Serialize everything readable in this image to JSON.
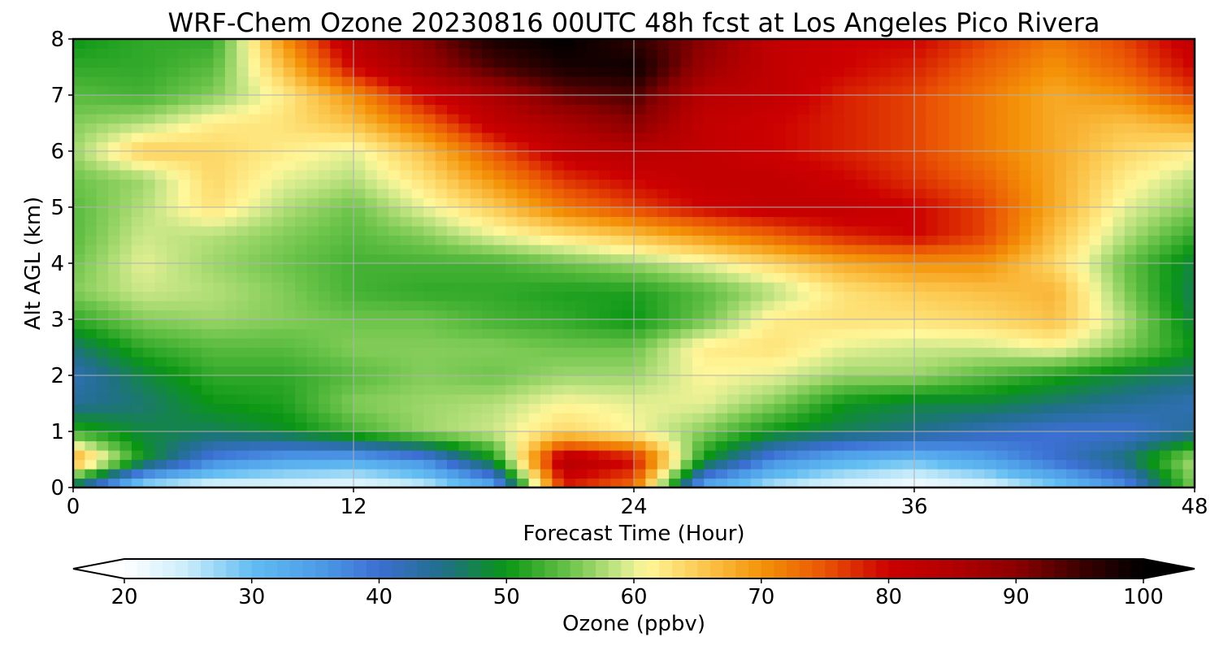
{
  "chart_data": {
    "type": "heatmap",
    "title": "WRF-Chem Ozone  20230816 00UTC 48h fcst at Los Angeles Pico Rivera",
    "xlabel": "Forecast Time (Hour)",
    "ylabel": "Alt AGL (km)",
    "xlim": [
      0,
      48
    ],
    "ylim": [
      0,
      8
    ],
    "x_ticks": [
      "0",
      "12",
      "24",
      "36",
      "48"
    ],
    "y_ticks": [
      "0",
      "1",
      "2",
      "3",
      "4",
      "5",
      "6",
      "7",
      "8"
    ],
    "grid": true,
    "x": [
      0,
      3,
      6,
      9,
      12,
      15,
      18,
      21,
      24,
      27,
      30,
      33,
      36,
      39,
      42,
      45,
      48
    ],
    "y": [
      0,
      0.5,
      1,
      1.5,
      2,
      2.5,
      3,
      3.5,
      4,
      4.5,
      5,
      5.5,
      6,
      6.5,
      7,
      7.5,
      8
    ],
    "z": [
      [
        45,
        25,
        22,
        22,
        21,
        24,
        32,
        78,
        73,
        32,
        25,
        22,
        20,
        22,
        28,
        36,
        56
      ],
      [
        70,
        50,
        38,
        34,
        33,
        37,
        50,
        85,
        80,
        50,
        37,
        32,
        30,
        34,
        40,
        46,
        58
      ],
      [
        52,
        48,
        47,
        49,
        53,
        57,
        59,
        64,
        61,
        56,
        50,
        47,
        45,
        42,
        40,
        40,
        44
      ],
      [
        44,
        46,
        50,
        51,
        56,
        57,
        58,
        61,
        60,
        60,
        56,
        50,
        48,
        48,
        46,
        44,
        42
      ],
      [
        42,
        48,
        52,
        52,
        54,
        56,
        55,
        57,
        57,
        61,
        60,
        57,
        57,
        54,
        51,
        48,
        46
      ],
      [
        46,
        52,
        54,
        54,
        56,
        56,
        56,
        55,
        55,
        62,
        63,
        60,
        59,
        59,
        61,
        56,
        50
      ],
      [
        52,
        56,
        57,
        56,
        55,
        55,
        53,
        52,
        50,
        55,
        62,
        63,
        63,
        64,
        66,
        58,
        48
      ],
      [
        56,
        59,
        58,
        56,
        53,
        52,
        52,
        51,
        51,
        54,
        58,
        63,
        65,
        66,
        67,
        56,
        47
      ],
      [
        55,
        60,
        57,
        55,
        53,
        53,
        53,
        55,
        57,
        60,
        64,
        68,
        70,
        70,
        64,
        55,
        48
      ],
      [
        54,
        59,
        58,
        56,
        54,
        56,
        60,
        63,
        66,
        70,
        74,
        78,
        80,
        76,
        66,
        58,
        52
      ],
      [
        54,
        58,
        63,
        58,
        55,
        60,
        65,
        72,
        76,
        80,
        82,
        82,
        80,
        76,
        68,
        60,
        56
      ],
      [
        55,
        57,
        64,
        60,
        58,
        63,
        70,
        77,
        80,
        82,
        82,
        80,
        77,
        74,
        68,
        62,
        58
      ],
      [
        57,
        65,
        64,
        62,
        60,
        66,
        75,
        82,
        84,
        82,
        80,
        78,
        76,
        72,
        68,
        64,
        62
      ],
      [
        56,
        58,
        62,
        63,
        66,
        73,
        82,
        86,
        90,
        82,
        80,
        78,
        76,
        72,
        68,
        66,
        68
      ],
      [
        54,
        53,
        56,
        62,
        70,
        80,
        86,
        92,
        94,
        84,
        82,
        78,
        76,
        72,
        68,
        70,
        76
      ],
      [
        52,
        52,
        54,
        66,
        80,
        88,
        94,
        98,
        99,
        88,
        82,
        80,
        78,
        74,
        70,
        74,
        80
      ],
      [
        50,
        52,
        52,
        70,
        84,
        90,
        98,
        100,
        96,
        90,
        82,
        80,
        80,
        76,
        72,
        76,
        82
      ]
    ],
    "colorbar": {
      "label": "Ozone  (ppbv)",
      "min": 20,
      "max": 100,
      "tick_labels": [
        "20",
        "30",
        "40",
        "50",
        "60",
        "70",
        "80",
        "90",
        "100"
      ],
      "extend": "both",
      "stops": [
        {
          "v": 20,
          "c": "#ffffff"
        },
        {
          "v": 25,
          "c": "#c8ecfa"
        },
        {
          "v": 30,
          "c": "#62bdf2"
        },
        {
          "v": 35,
          "c": "#4e9ee8"
        },
        {
          "v": 40,
          "c": "#3b6fd2"
        },
        {
          "v": 45,
          "c": "#206f8a"
        },
        {
          "v": 50,
          "c": "#0a9614"
        },
        {
          "v": 55,
          "c": "#6cc44a"
        },
        {
          "v": 59,
          "c": "#cde88a"
        },
        {
          "v": 61,
          "c": "#fff79a"
        },
        {
          "v": 65,
          "c": "#fccc55"
        },
        {
          "v": 70,
          "c": "#f49308"
        },
        {
          "v": 75,
          "c": "#ea5404"
        },
        {
          "v": 80,
          "c": "#cc0000"
        },
        {
          "v": 85,
          "c": "#b20000"
        },
        {
          "v": 90,
          "c": "#8c0000"
        },
        {
          "v": 95,
          "c": "#3d0000"
        },
        {
          "v": 100,
          "c": "#000000"
        }
      ]
    }
  }
}
